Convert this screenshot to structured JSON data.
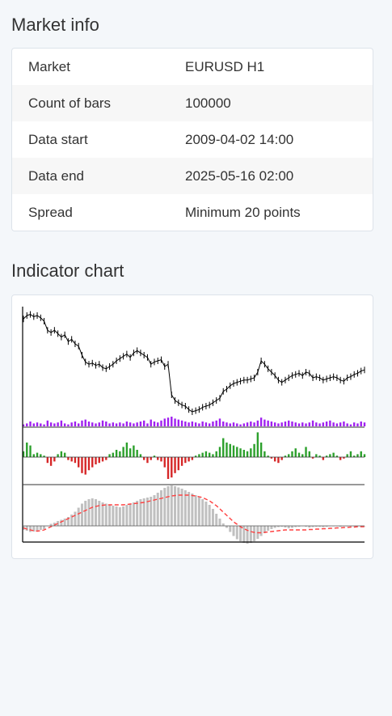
{
  "market_info": {
    "title": "Market info",
    "rows": [
      {
        "label": "Market",
        "value": "EURUSD H1"
      },
      {
        "label": "Count of bars",
        "value": "100000"
      },
      {
        "label": "Data start",
        "value": "2009-04-02 14:00"
      },
      {
        "label": "Data end",
        "value": "2025-05-16 02:00"
      },
      {
        "label": "Spread",
        "value": "Minimum 20 points"
      }
    ]
  },
  "indicator_chart": {
    "title": "Indicator chart"
  },
  "chart_data": {
    "type": "line",
    "title": "",
    "xlabel": "",
    "ylabel": "",
    "grid": false,
    "colors": {
      "price": "#000000",
      "volume": "#a020f0",
      "histogram_up": "#2ca02c",
      "histogram_down": "#d62728",
      "oscillator": "#c0c0c0",
      "signal": "#ff4040"
    },
    "price_close": [
      0.92,
      0.95,
      0.96,
      0.94,
      0.95,
      0.93,
      0.9,
      0.82,
      0.8,
      0.82,
      0.79,
      0.76,
      0.78,
      0.72,
      0.74,
      0.7,
      0.68,
      0.6,
      0.54,
      0.52,
      0.53,
      0.51,
      0.52,
      0.49,
      0.48,
      0.5,
      0.52,
      0.55,
      0.57,
      0.59,
      0.61,
      0.58,
      0.62,
      0.64,
      0.62,
      0.6,
      0.58,
      0.52,
      0.54,
      0.55,
      0.56,
      0.5,
      0.52,
      0.25,
      0.2,
      0.18,
      0.16,
      0.15,
      0.12,
      0.1,
      0.11,
      0.12,
      0.14,
      0.15,
      0.16,
      0.18,
      0.2,
      0.22,
      0.28,
      0.3,
      0.33,
      0.35,
      0.36,
      0.37,
      0.38,
      0.38,
      0.39,
      0.4,
      0.45,
      0.55,
      0.52,
      0.48,
      0.45,
      0.42,
      0.38,
      0.36,
      0.38,
      0.4,
      0.42,
      0.43,
      0.44,
      0.42,
      0.45,
      0.44,
      0.4,
      0.41,
      0.4,
      0.38,
      0.39,
      0.4,
      0.41,
      0.4,
      0.38,
      0.37,
      0.4,
      0.41,
      0.43,
      0.44,
      0.46,
      0.47
    ],
    "volume": [
      0.2,
      0.3,
      0.5,
      0.3,
      0.4,
      0.3,
      0.2,
      0.6,
      0.4,
      0.3,
      0.4,
      0.6,
      0.3,
      0.2,
      0.4,
      0.5,
      0.3,
      0.6,
      0.7,
      0.5,
      0.4,
      0.3,
      0.4,
      0.6,
      0.5,
      0.3,
      0.4,
      0.3,
      0.4,
      0.3,
      0.5,
      0.4,
      0.3,
      0.4,
      0.5,
      0.6,
      0.3,
      0.7,
      0.5,
      0.4,
      0.6,
      0.8,
      0.9,
      1.0,
      0.8,
      0.7,
      0.6,
      0.5,
      0.4,
      0.5,
      0.4,
      0.3,
      0.5,
      0.4,
      0.3,
      0.5,
      0.6,
      0.8,
      0.5,
      0.4,
      0.3,
      0.4,
      0.3,
      0.2,
      0.3,
      0.4,
      0.5,
      0.4,
      0.6,
      0.9,
      0.7,
      0.6,
      0.5,
      0.4,
      0.3,
      0.4,
      0.5,
      0.6,
      0.5,
      0.4,
      0.3,
      0.4,
      0.3,
      0.4,
      0.6,
      0.4,
      0.3,
      0.4,
      0.5,
      0.6,
      0.4,
      0.3,
      0.4,
      0.5,
      0.3,
      0.2,
      0.4,
      0.3,
      0.5,
      0.4
    ],
    "histogram": [
      0.2,
      0.5,
      0.4,
      0.1,
      0.15,
      0.1,
      0.05,
      -0.2,
      -0.3,
      -0.15,
      0.1,
      0.2,
      0.15,
      -0.1,
      -0.15,
      -0.2,
      -0.35,
      -0.55,
      -0.6,
      -0.45,
      -0.35,
      -0.25,
      -0.2,
      -0.15,
      -0.1,
      0.1,
      0.15,
      0.25,
      0.2,
      0.35,
      0.5,
      0.3,
      0.4,
      0.25,
      0.1,
      -0.1,
      -0.2,
      -0.1,
      0.05,
      -0.1,
      -0.15,
      -0.35,
      -0.75,
      -0.7,
      -0.55,
      -0.45,
      -0.3,
      -0.2,
      -0.15,
      -0.1,
      0.05,
      0.1,
      0.15,
      0.2,
      0.15,
      0.1,
      0.2,
      0.35,
      0.65,
      0.5,
      0.45,
      0.4,
      0.35,
      0.3,
      0.25,
      0.2,
      0.3,
      0.45,
      0.85,
      0.5,
      0.2,
      0.05,
      -0.05,
      -0.15,
      -0.2,
      -0.1,
      0.05,
      0.1,
      0.2,
      0.3,
      0.15,
      0.1,
      0.35,
      0.2,
      -0.05,
      0.1,
      0.05,
      -0.1,
      0.05,
      0.1,
      0.15,
      0.05,
      -0.1,
      -0.05,
      0.1,
      0.2,
      0.05,
      0.1,
      0.2,
      0.1
    ],
    "oscillator": [
      -0.1,
      -0.12,
      -0.15,
      -0.14,
      -0.12,
      -0.1,
      -0.08,
      0.0,
      0.05,
      0.08,
      0.12,
      0.15,
      0.18,
      0.22,
      0.28,
      0.35,
      0.45,
      0.55,
      0.62,
      0.66,
      0.68,
      0.66,
      0.62,
      0.58,
      0.55,
      0.52,
      0.5,
      0.48,
      0.46,
      0.48,
      0.52,
      0.55,
      0.58,
      0.62,
      0.66,
      0.68,
      0.7,
      0.72,
      0.76,
      0.82,
      0.88,
      0.94,
      0.98,
      1.0,
      0.98,
      0.95,
      0.92,
      0.88,
      0.84,
      0.8,
      0.76,
      0.72,
      0.66,
      0.6,
      0.52,
      0.42,
      0.3,
      0.18,
      0.06,
      -0.05,
      -0.15,
      -0.25,
      -0.33,
      -0.38,
      -0.42,
      -0.44,
      -0.42,
      -0.38,
      -0.32,
      -0.25,
      -0.18,
      -0.12,
      -0.08,
      -0.05,
      -0.03,
      -0.02,
      -0.04,
      -0.06,
      -0.05,
      -0.03,
      -0.02,
      0.0,
      -0.02,
      -0.04,
      -0.03,
      -0.02,
      -0.02,
      -0.03,
      -0.02,
      -0.01,
      0.0,
      -0.01,
      -0.02,
      -0.01,
      0.0,
      0.0,
      -0.01,
      0.0,
      0.0,
      0.0
    ],
    "signal": [
      -0.05,
      -0.08,
      -0.1,
      -0.12,
      -0.13,
      -0.12,
      -0.1,
      -0.06,
      -0.02,
      0.02,
      0.06,
      0.1,
      0.14,
      0.18,
      0.22,
      0.26,
      0.3,
      0.34,
      0.38,
      0.42,
      0.46,
      0.48,
      0.5,
      0.51,
      0.52,
      0.52,
      0.52,
      0.52,
      0.52,
      0.52,
      0.53,
      0.54,
      0.55,
      0.56,
      0.57,
      0.58,
      0.6,
      0.62,
      0.64,
      0.66,
      0.68,
      0.7,
      0.72,
      0.74,
      0.75,
      0.76,
      0.76,
      0.76,
      0.76,
      0.75,
      0.74,
      0.72,
      0.7,
      0.66,
      0.62,
      0.56,
      0.5,
      0.42,
      0.34,
      0.26,
      0.18,
      0.1,
      0.04,
      -0.02,
      -0.07,
      -0.11,
      -0.14,
      -0.16,
      -0.17,
      -0.17,
      -0.16,
      -0.15,
      -0.14,
      -0.13,
      -0.12,
      -0.11,
      -0.1,
      -0.1,
      -0.1,
      -0.1,
      -0.1,
      -0.1,
      -0.1,
      -0.09,
      -0.09,
      -0.08,
      -0.08,
      -0.07,
      -0.07,
      -0.06,
      -0.06,
      -0.05,
      -0.05,
      -0.04,
      -0.04,
      -0.03,
      -0.03,
      -0.02,
      -0.02,
      -0.02
    ]
  }
}
